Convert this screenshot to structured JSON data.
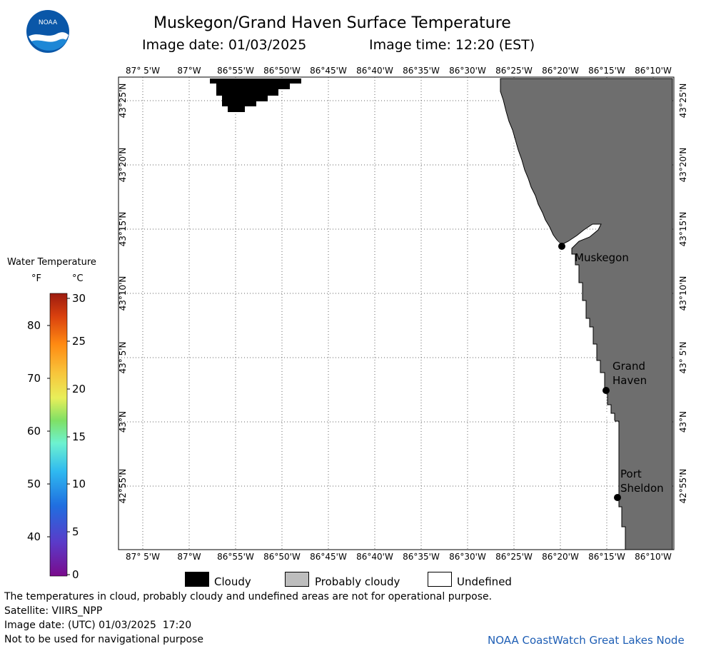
{
  "title": {
    "main": "Muskegon/Grand Haven Surface Temperature",
    "date": "Image date: 01/03/2025",
    "time": "Image time: 12:20 (EST)"
  },
  "logo": {
    "text": "NOAA"
  },
  "map": {
    "lon_labels": [
      "87° 5'W",
      "87°W",
      "86°55'W",
      "86°50'W",
      "86°45'W",
      "86°40'W",
      "86°35'W",
      "86°30'W",
      "86°25'W",
      "86°20'W",
      "86°15'W",
      "86°10'W"
    ],
    "lat_labels": [
      "43°25'N",
      "43°20'N",
      "43°15'N",
      "43°10'N",
      "43° 5'N",
      "43°N",
      "42°55'N"
    ],
    "places": [
      {
        "name": "Muskegon"
      },
      {
        "name": "Grand Haven",
        "lines": [
          "Grand",
          "Haven"
        ]
      },
      {
        "name": "Port Sheldon",
        "lines": [
          "Port",
          "Sheldon"
        ]
      }
    ],
    "land_color": "#6e6e6e",
    "cloud_color": "#000000"
  },
  "colorbar": {
    "title": "Water Temperature",
    "unit_f": "°F",
    "unit_c": "°C",
    "f_ticks": [
      "80",
      "70",
      "60",
      "50",
      "40"
    ],
    "c_ticks": [
      "30",
      "25",
      "20",
      "15",
      "10",
      "5",
      "0"
    ]
  },
  "legend": {
    "items": [
      {
        "label": "Cloudy",
        "color": "#000000"
      },
      {
        "label": "Probably cloudy",
        "color": "#bdbdbd"
      },
      {
        "label": "Undefined",
        "color": "#ffffff"
      }
    ]
  },
  "footer": {
    "line1": "The temperatures in cloud, probably cloudy and undefined areas are not for operational purpose.",
    "line2": "Satellite: VIIRS_NPP",
    "line3": "Image date: (UTC) 01/03/2025  17:20",
    "line4": "Not to be used for navigational purpose",
    "credit": "NOAA CoastWatch Great Lakes Node"
  }
}
